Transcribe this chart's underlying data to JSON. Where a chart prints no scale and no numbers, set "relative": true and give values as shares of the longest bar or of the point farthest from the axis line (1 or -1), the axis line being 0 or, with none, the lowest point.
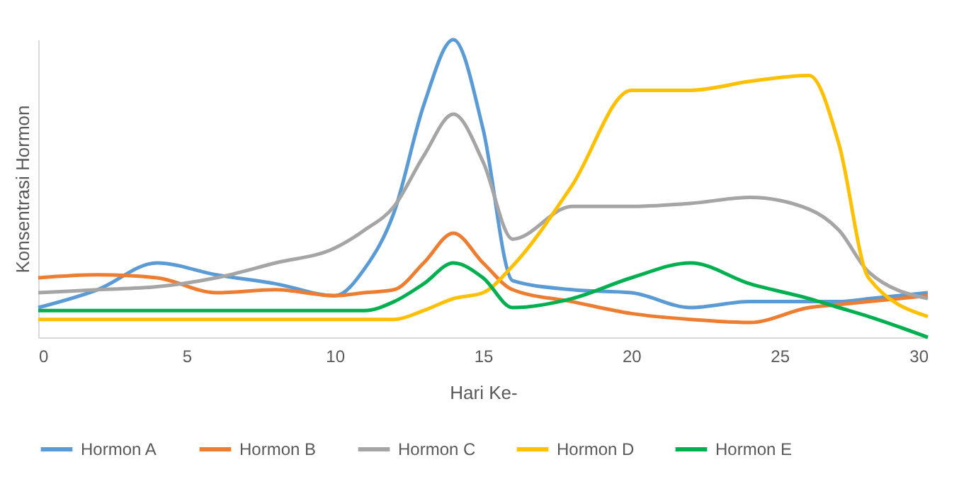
{
  "chart_data": {
    "type": "line",
    "relative": true,
    "xlabel": "Hari Ke-",
    "ylabel": "Konsentrasi Hormon",
    "xlim": [
      0,
      30
    ],
    "xticks": [
      0,
      5,
      10,
      15,
      20,
      25,
      30
    ],
    "legend": "bottom",
    "grid": false,
    "x": [
      0,
      2,
      4,
      6,
      8,
      10,
      11,
      12,
      13,
      14,
      15,
      16,
      18,
      20,
      22,
      24,
      26,
      27,
      28,
      30
    ],
    "series": [
      {
        "name": "Hormon A",
        "color": "#5b9bd5",
        "values": [
          0.1,
          0.16,
          0.25,
          0.21,
          0.18,
          0.14,
          0.23,
          0.42,
          0.78,
          1,
          0.7,
          0.19,
          0.16,
          0.15,
          0.1,
          0.12,
          0.12,
          0.12,
          0.13,
          0.15
        ]
      },
      {
        "name": "Hormon B",
        "color": "#ed7d31",
        "values": [
          0.2,
          0.21,
          0.2,
          0.15,
          0.16,
          0.14,
          0.15,
          0.16,
          0.25,
          0.35,
          0.25,
          0.16,
          0.12,
          0.08,
          0.06,
          0.05,
          0.1,
          0.11,
          0.12,
          0.14
        ]
      },
      {
        "name": "Hormon C",
        "color": "#a5a5a5",
        "values": [
          0.15,
          0.16,
          0.17,
          0.2,
          0.25,
          0.3,
          0.36,
          0.44,
          0.61,
          0.75,
          0.59,
          0.33,
          0.44,
          0.44,
          0.45,
          0.47,
          0.43,
          0.36,
          0.22,
          0.13
        ]
      },
      {
        "name": "Hormon D",
        "color": "#ffc000",
        "values": [
          0.06,
          0.06,
          0.06,
          0.06,
          0.06,
          0.06,
          0.06,
          0.06,
          0.09,
          0.13,
          0.15,
          0.24,
          0.51,
          0.83,
          0.83,
          0.86,
          0.88,
          0.65,
          0.2,
          0.07
        ]
      },
      {
        "name": "Hormon E",
        "color": "#00b050",
        "values": [
          0.09,
          0.09,
          0.09,
          0.09,
          0.09,
          0.09,
          0.09,
          0.12,
          0.18,
          0.25,
          0.2,
          0.1,
          0.13,
          0.2,
          0.25,
          0.18,
          0.13,
          0.1,
          0.07,
          0
        ]
      }
    ]
  }
}
